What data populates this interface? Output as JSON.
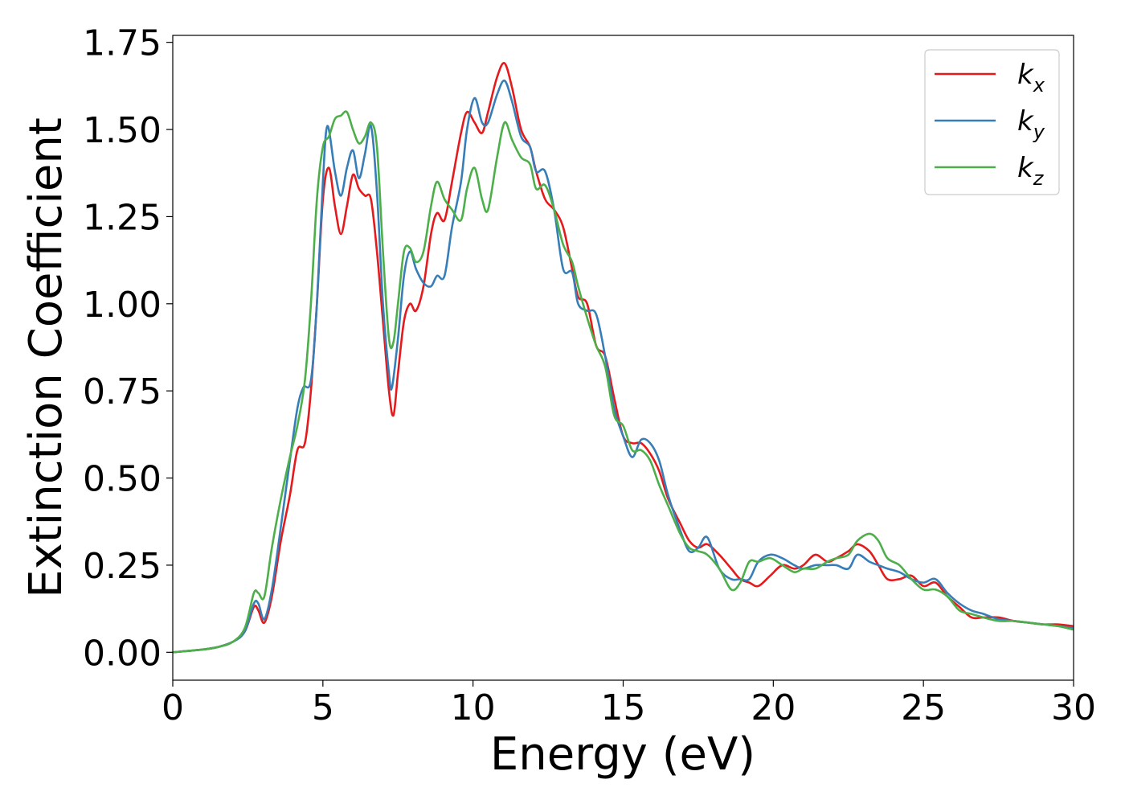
{
  "chart_data": {
    "type": "line",
    "xlabel": "Energy (eV)",
    "ylabel": "Extinction Coefficient",
    "xlim": [
      0,
      30
    ],
    "ylim": [
      -0.08,
      1.77
    ],
    "xticks": [
      0,
      5,
      10,
      15,
      20,
      25,
      30
    ],
    "xtick_labels": [
      "0",
      "5",
      "10",
      "15",
      "20",
      "25",
      "30"
    ],
    "yticks": [
      0,
      0.25,
      0.5,
      0.75,
      1.0,
      1.25,
      1.5,
      1.75
    ],
    "ytick_labels": [
      "0.00",
      "0.25",
      "0.50",
      "0.75",
      "1.00",
      "1.25",
      "1.50",
      "1.75"
    ],
    "grid": false,
    "legend_position": "top-right",
    "series": [
      {
        "name": "k",
        "subscript": "x",
        "color": "#e41a1c",
        "points": [
          [
            0,
            0.0
          ],
          [
            1,
            0.008
          ],
          [
            1.5,
            0.015
          ],
          [
            2,
            0.03
          ],
          [
            2.4,
            0.06
          ],
          [
            2.7,
            0.13
          ],
          [
            2.85,
            0.12
          ],
          [
            3.05,
            0.085
          ],
          [
            3.3,
            0.16
          ],
          [
            3.6,
            0.32
          ],
          [
            3.9,
            0.45
          ],
          [
            4.15,
            0.58
          ],
          [
            4.4,
            0.6
          ],
          [
            4.6,
            0.75
          ],
          [
            4.8,
            1.0
          ],
          [
            5.0,
            1.3
          ],
          [
            5.2,
            1.39
          ],
          [
            5.4,
            1.28
          ],
          [
            5.6,
            1.2
          ],
          [
            5.8,
            1.28
          ],
          [
            6.0,
            1.37
          ],
          [
            6.2,
            1.33
          ],
          [
            6.4,
            1.31
          ],
          [
            6.6,
            1.3
          ],
          [
            6.8,
            1.15
          ],
          [
            7.0,
            0.95
          ],
          [
            7.2,
            0.75
          ],
          [
            7.35,
            0.68
          ],
          [
            7.5,
            0.8
          ],
          [
            7.7,
            0.95
          ],
          [
            7.9,
            1.0
          ],
          [
            8.1,
            0.98
          ],
          [
            8.35,
            1.05
          ],
          [
            8.6,
            1.2
          ],
          [
            8.8,
            1.26
          ],
          [
            9.05,
            1.24
          ],
          [
            9.3,
            1.35
          ],
          [
            9.6,
            1.49
          ],
          [
            9.8,
            1.55
          ],
          [
            10.05,
            1.52
          ],
          [
            10.3,
            1.49
          ],
          [
            10.5,
            1.55
          ],
          [
            10.8,
            1.65
          ],
          [
            11.05,
            1.69
          ],
          [
            11.3,
            1.62
          ],
          [
            11.6,
            1.5
          ],
          [
            11.9,
            1.45
          ],
          [
            12.1,
            1.38
          ],
          [
            12.4,
            1.3
          ],
          [
            12.7,
            1.27
          ],
          [
            13.0,
            1.22
          ],
          [
            13.3,
            1.1
          ],
          [
            13.5,
            1.02
          ],
          [
            13.8,
            1.0
          ],
          [
            14.1,
            0.88
          ],
          [
            14.4,
            0.85
          ],
          [
            14.7,
            0.73
          ],
          [
            15.0,
            0.62
          ],
          [
            15.3,
            0.6
          ],
          [
            15.6,
            0.6
          ],
          [
            15.9,
            0.57
          ],
          [
            16.2,
            0.52
          ],
          [
            16.5,
            0.44
          ],
          [
            16.9,
            0.37
          ],
          [
            17.2,
            0.32
          ],
          [
            17.5,
            0.3
          ],
          [
            17.8,
            0.31
          ],
          [
            18.2,
            0.28
          ],
          [
            18.6,
            0.24
          ],
          [
            18.9,
            0.21
          ],
          [
            19.2,
            0.2
          ],
          [
            19.5,
            0.19
          ],
          [
            19.9,
            0.22
          ],
          [
            20.3,
            0.25
          ],
          [
            20.7,
            0.24
          ],
          [
            21.0,
            0.25
          ],
          [
            21.4,
            0.28
          ],
          [
            21.8,
            0.26
          ],
          [
            22.1,
            0.27
          ],
          [
            22.5,
            0.29
          ],
          [
            22.8,
            0.31
          ],
          [
            23.2,
            0.29
          ],
          [
            23.5,
            0.25
          ],
          [
            23.8,
            0.21
          ],
          [
            24.2,
            0.21
          ],
          [
            24.6,
            0.22
          ],
          [
            25.0,
            0.19
          ],
          [
            25.4,
            0.2
          ],
          [
            25.8,
            0.16
          ],
          [
            26.2,
            0.13
          ],
          [
            26.6,
            0.1
          ],
          [
            27.0,
            0.1
          ],
          [
            27.5,
            0.1
          ],
          [
            28.0,
            0.09
          ],
          [
            28.5,
            0.085
          ],
          [
            29.0,
            0.08
          ],
          [
            29.5,
            0.08
          ],
          [
            30.0,
            0.075
          ]
        ]
      },
      {
        "name": "k",
        "subscript": "y",
        "color": "#377eb8",
        "points": [
          [
            0,
            0.0
          ],
          [
            1,
            0.008
          ],
          [
            1.5,
            0.015
          ],
          [
            2,
            0.03
          ],
          [
            2.4,
            0.06
          ],
          [
            2.7,
            0.14
          ],
          [
            2.85,
            0.14
          ],
          [
            3.05,
            0.095
          ],
          [
            3.3,
            0.18
          ],
          [
            3.6,
            0.36
          ],
          [
            3.9,
            0.55
          ],
          [
            4.15,
            0.7
          ],
          [
            4.35,
            0.76
          ],
          [
            4.6,
            0.78
          ],
          [
            4.8,
            1.0
          ],
          [
            5.0,
            1.35
          ],
          [
            5.15,
            1.51
          ],
          [
            5.4,
            1.38
          ],
          [
            5.6,
            1.31
          ],
          [
            5.8,
            1.39
          ],
          [
            6.0,
            1.44
          ],
          [
            6.2,
            1.36
          ],
          [
            6.4,
            1.43
          ],
          [
            6.6,
            1.51
          ],
          [
            6.8,
            1.32
          ],
          [
            7.0,
            1.0
          ],
          [
            7.2,
            0.8
          ],
          [
            7.3,
            0.76
          ],
          [
            7.5,
            0.9
          ],
          [
            7.7,
            1.08
          ],
          [
            7.9,
            1.15
          ],
          [
            8.1,
            1.1
          ],
          [
            8.35,
            1.06
          ],
          [
            8.6,
            1.05
          ],
          [
            8.8,
            1.08
          ],
          [
            9.05,
            1.08
          ],
          [
            9.3,
            1.22
          ],
          [
            9.6,
            1.35
          ],
          [
            9.8,
            1.5
          ],
          [
            10.05,
            1.59
          ],
          [
            10.3,
            1.52
          ],
          [
            10.5,
            1.52
          ],
          [
            10.8,
            1.6
          ],
          [
            11.05,
            1.64
          ],
          [
            11.3,
            1.58
          ],
          [
            11.6,
            1.48
          ],
          [
            11.9,
            1.45
          ],
          [
            12.1,
            1.38
          ],
          [
            12.4,
            1.38
          ],
          [
            12.7,
            1.27
          ],
          [
            13.0,
            1.1
          ],
          [
            13.3,
            1.09
          ],
          [
            13.5,
            1.0
          ],
          [
            13.8,
            0.98
          ],
          [
            14.1,
            0.97
          ],
          [
            14.4,
            0.85
          ],
          [
            14.7,
            0.7
          ],
          [
            15.0,
            0.62
          ],
          [
            15.3,
            0.56
          ],
          [
            15.6,
            0.61
          ],
          [
            15.9,
            0.6
          ],
          [
            16.2,
            0.55
          ],
          [
            16.5,
            0.45
          ],
          [
            16.9,
            0.35
          ],
          [
            17.2,
            0.29
          ],
          [
            17.5,
            0.3
          ],
          [
            17.8,
            0.33
          ],
          [
            18.2,
            0.24
          ],
          [
            18.6,
            0.21
          ],
          [
            18.9,
            0.21
          ],
          [
            19.2,
            0.21
          ],
          [
            19.5,
            0.26
          ],
          [
            19.9,
            0.28
          ],
          [
            20.3,
            0.27
          ],
          [
            20.7,
            0.25
          ],
          [
            21.0,
            0.24
          ],
          [
            21.4,
            0.25
          ],
          [
            21.8,
            0.25
          ],
          [
            22.1,
            0.25
          ],
          [
            22.5,
            0.24
          ],
          [
            22.8,
            0.28
          ],
          [
            23.2,
            0.26
          ],
          [
            23.5,
            0.25
          ],
          [
            23.8,
            0.24
          ],
          [
            24.2,
            0.23
          ],
          [
            24.6,
            0.21
          ],
          [
            25.0,
            0.2
          ],
          [
            25.4,
            0.21
          ],
          [
            25.8,
            0.17
          ],
          [
            26.2,
            0.14
          ],
          [
            26.6,
            0.12
          ],
          [
            27.0,
            0.11
          ],
          [
            27.5,
            0.095
          ],
          [
            28.0,
            0.09
          ],
          [
            28.5,
            0.085
          ],
          [
            29.0,
            0.08
          ],
          [
            29.5,
            0.075
          ],
          [
            30.0,
            0.07
          ]
        ]
      },
      {
        "name": "k",
        "subscript": "z",
        "color": "#4daf4a",
        "points": [
          [
            0,
            0.0
          ],
          [
            1,
            0.008
          ],
          [
            1.5,
            0.015
          ],
          [
            2,
            0.03
          ],
          [
            2.4,
            0.07
          ],
          [
            2.7,
            0.17
          ],
          [
            2.85,
            0.17
          ],
          [
            3.05,
            0.16
          ],
          [
            3.3,
            0.3
          ],
          [
            3.6,
            0.44
          ],
          [
            3.9,
            0.56
          ],
          [
            4.15,
            0.65
          ],
          [
            4.4,
            0.78
          ],
          [
            4.6,
            1.0
          ],
          [
            4.8,
            1.3
          ],
          [
            5.0,
            1.45
          ],
          [
            5.2,
            1.48
          ],
          [
            5.4,
            1.53
          ],
          [
            5.6,
            1.54
          ],
          [
            5.8,
            1.55
          ],
          [
            6.0,
            1.5
          ],
          [
            6.2,
            1.46
          ],
          [
            6.4,
            1.48
          ],
          [
            6.6,
            1.52
          ],
          [
            6.8,
            1.45
          ],
          [
            7.0,
            1.15
          ],
          [
            7.2,
            0.9
          ],
          [
            7.35,
            0.89
          ],
          [
            7.5,
            1.0
          ],
          [
            7.7,
            1.15
          ],
          [
            7.9,
            1.16
          ],
          [
            8.1,
            1.12
          ],
          [
            8.35,
            1.15
          ],
          [
            8.6,
            1.28
          ],
          [
            8.8,
            1.35
          ],
          [
            9.05,
            1.3
          ],
          [
            9.3,
            1.27
          ],
          [
            9.6,
            1.24
          ],
          [
            9.8,
            1.33
          ],
          [
            10.05,
            1.39
          ],
          [
            10.3,
            1.3
          ],
          [
            10.5,
            1.27
          ],
          [
            10.8,
            1.42
          ],
          [
            11.05,
            1.52
          ],
          [
            11.3,
            1.47
          ],
          [
            11.6,
            1.42
          ],
          [
            11.9,
            1.4
          ],
          [
            12.1,
            1.33
          ],
          [
            12.4,
            1.34
          ],
          [
            12.7,
            1.27
          ],
          [
            13.0,
            1.17
          ],
          [
            13.3,
            1.12
          ],
          [
            13.5,
            1.05
          ],
          [
            13.8,
            0.96
          ],
          [
            14.1,
            0.88
          ],
          [
            14.4,
            0.82
          ],
          [
            14.7,
            0.68
          ],
          [
            15.0,
            0.65
          ],
          [
            15.3,
            0.58
          ],
          [
            15.6,
            0.58
          ],
          [
            15.9,
            0.55
          ],
          [
            16.2,
            0.48
          ],
          [
            16.5,
            0.42
          ],
          [
            16.9,
            0.34
          ],
          [
            17.2,
            0.3
          ],
          [
            17.5,
            0.29
          ],
          [
            17.8,
            0.28
          ],
          [
            18.2,
            0.24
          ],
          [
            18.6,
            0.18
          ],
          [
            18.9,
            0.2
          ],
          [
            19.2,
            0.26
          ],
          [
            19.5,
            0.26
          ],
          [
            19.9,
            0.27
          ],
          [
            20.3,
            0.25
          ],
          [
            20.7,
            0.23
          ],
          [
            21.0,
            0.24
          ],
          [
            21.4,
            0.24
          ],
          [
            21.8,
            0.26
          ],
          [
            22.1,
            0.27
          ],
          [
            22.5,
            0.28
          ],
          [
            22.8,
            0.32
          ],
          [
            23.2,
            0.34
          ],
          [
            23.5,
            0.32
          ],
          [
            23.8,
            0.27
          ],
          [
            24.2,
            0.25
          ],
          [
            24.6,
            0.21
          ],
          [
            25.0,
            0.18
          ],
          [
            25.4,
            0.18
          ],
          [
            25.8,
            0.16
          ],
          [
            26.2,
            0.12
          ],
          [
            26.6,
            0.11
          ],
          [
            27.0,
            0.1
          ],
          [
            27.5,
            0.09
          ],
          [
            28.0,
            0.09
          ],
          [
            28.5,
            0.085
          ],
          [
            29.0,
            0.08
          ],
          [
            29.5,
            0.075
          ],
          [
            30.0,
            0.065
          ]
        ]
      }
    ]
  }
}
